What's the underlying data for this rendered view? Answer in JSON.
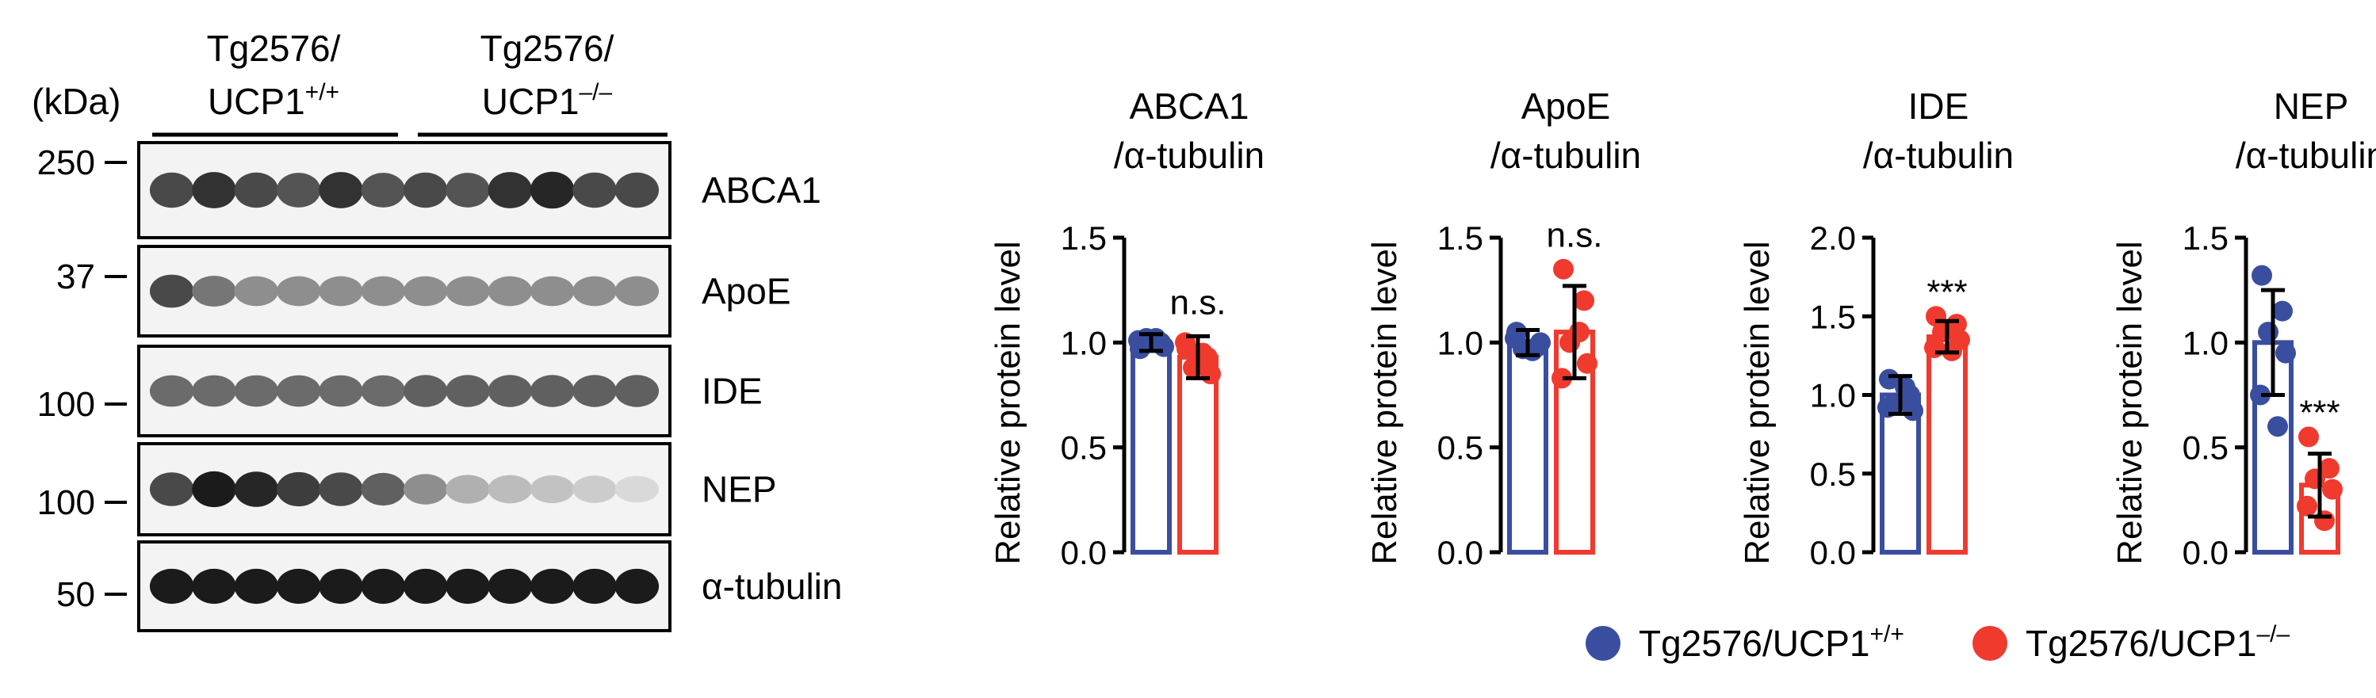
{
  "western": {
    "unit_label": "(kDa)",
    "group1": {
      "line1": "Tg2576/",
      "line2": "UCP1",
      "sup": "+/+"
    },
    "group2": {
      "line1": "Tg2576/",
      "line2": "UCP1",
      "sup": "–/–"
    },
    "markers": [
      {
        "label": "250",
        "intensity": 0
      },
      {
        "label": "37",
        "intensity": 0
      },
      {
        "label": "100",
        "intensity": 0
      },
      {
        "label": "100",
        "intensity": 0
      },
      {
        "label": "50",
        "intensity": 0
      }
    ],
    "blots": [
      {
        "name": "ABCA1",
        "band_intensity": [
          0.75,
          0.85,
          0.75,
          0.7,
          0.85,
          0.7,
          0.75,
          0.7,
          0.85,
          0.9,
          0.75,
          0.75
        ]
      },
      {
        "name": "ApoE",
        "band_intensity": [
          0.75,
          0.55,
          0.45,
          0.45,
          0.45,
          0.45,
          0.45,
          0.45,
          0.45,
          0.45,
          0.45,
          0.45
        ]
      },
      {
        "name": "IDE",
        "band_intensity": [
          0.6,
          0.6,
          0.6,
          0.6,
          0.6,
          0.6,
          0.65,
          0.65,
          0.65,
          0.65,
          0.65,
          0.65
        ]
      },
      {
        "name": "NEP",
        "band_intensity": [
          0.75,
          0.95,
          0.9,
          0.8,
          0.75,
          0.65,
          0.45,
          0.3,
          0.25,
          0.22,
          0.18,
          0.12
        ]
      },
      {
        "name": "α-tubulin",
        "band_intensity": [
          0.95,
          0.95,
          0.95,
          0.95,
          0.95,
          0.95,
          0.95,
          0.95,
          0.95,
          0.95,
          0.95,
          0.95
        ]
      }
    ]
  },
  "chart_data": [
    {
      "type": "bar",
      "title_line1": "ABCA1",
      "title_line2": "/α-tubulin",
      "ylabel": "Relative protein level",
      "ylim": [
        0,
        1.5
      ],
      "yticks": [
        "0.0",
        "0.5",
        "1.0",
        "1.5"
      ],
      "significance": "n.s.",
      "series": [
        {
          "name": "Tg2576/UCP1+/+",
          "mean": 1.0,
          "sd": 0.04,
          "points": [
            0.97,
            1.0,
            1.02,
            0.98,
            1.01,
            1.02
          ]
        },
        {
          "name": "Tg2576/UCP1–/–",
          "mean": 0.93,
          "sd": 0.1,
          "points": [
            0.97,
            0.93,
            0.88,
            0.85,
            1.0,
            0.95
          ]
        }
      ]
    },
    {
      "type": "bar",
      "title_line1": "ApoE",
      "title_line2": "/α-tubulin",
      "ylabel": "Relative protein level",
      "ylim": [
        0,
        1.5
      ],
      "yticks": [
        "0.0",
        "0.5",
        "1.0",
        "1.5"
      ],
      "significance": "n.s.",
      "series": [
        {
          "name": "Tg2576/UCP1+/+",
          "mean": 1.0,
          "sd": 0.06,
          "points": [
            1.05,
            0.98,
            0.97,
            1.0,
            1.02,
            0.96
          ]
        },
        {
          "name": "Tg2576/UCP1–/–",
          "mean": 1.05,
          "sd": 0.22,
          "points": [
            1.35,
            1.2,
            1.0,
            0.9,
            0.83,
            1.05
          ]
        }
      ]
    },
    {
      "type": "bar",
      "title_line1": "IDE",
      "title_line2": "/α-tubulin",
      "ylabel": "Relative protein level",
      "ylim": [
        0,
        2.0
      ],
      "yticks": [
        "0.0",
        "0.5",
        "1.0",
        "1.5",
        "2.0"
      ],
      "significance": "***",
      "series": [
        {
          "name": "Tg2576/UCP1+/+",
          "mean": 1.0,
          "sd": 0.12,
          "points": [
            1.1,
            1.0,
            0.95,
            0.9,
            0.92,
            1.05
          ]
        },
        {
          "name": "Tg2576/UCP1–/–",
          "mean": 1.37,
          "sd": 0.1,
          "points": [
            1.5,
            1.45,
            1.4,
            1.35,
            1.3,
            1.28
          ]
        }
      ]
    },
    {
      "type": "bar",
      "title_line1": "NEP",
      "title_line2": "/α-tubulin",
      "ylabel": "Relative protein level",
      "ylim": [
        0,
        1.5
      ],
      "yticks": [
        "0.0",
        "0.5",
        "1.0",
        "1.5"
      ],
      "significance": "***",
      "series": [
        {
          "name": "Tg2576/UCP1+/+",
          "mean": 1.0,
          "sd": 0.25,
          "points": [
            1.32,
            1.15,
            1.05,
            0.95,
            0.75,
            0.6
          ]
        },
        {
          "name": "Tg2576/UCP1–/–",
          "mean": 0.32,
          "sd": 0.15,
          "points": [
            0.55,
            0.4,
            0.35,
            0.3,
            0.22,
            0.15
          ]
        }
      ]
    }
  ],
  "legend": [
    {
      "label": "Tg2576/UCP1",
      "sup": "+/+",
      "color": "#3a4ea0"
    },
    {
      "label": "Tg2576/UCP1",
      "sup": "–/–",
      "color": "#f03a2e"
    }
  ],
  "colors": {
    "wt": "#3a4ea0",
    "ko": "#f03a2e"
  }
}
